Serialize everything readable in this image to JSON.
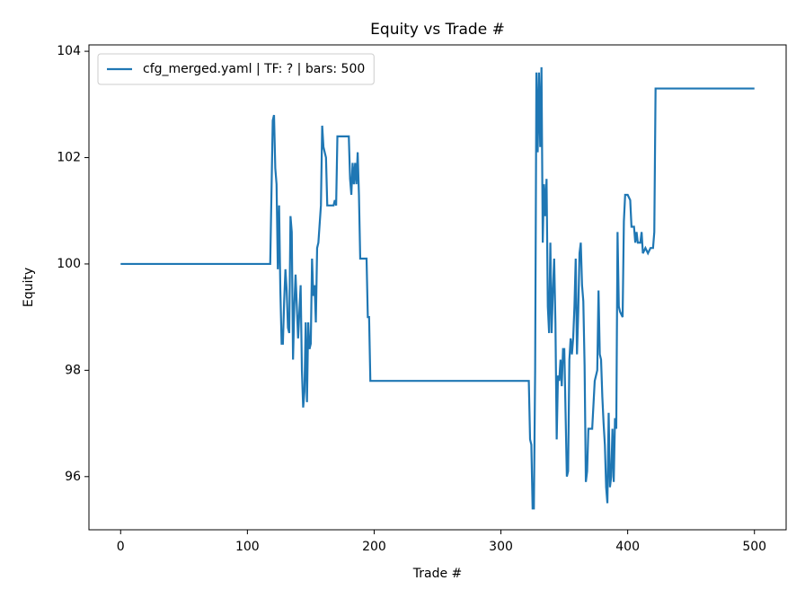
{
  "chart_data": {
    "type": "line",
    "title": "Equity vs Trade #",
    "x_label": "Trade #",
    "y_label": "Equity",
    "xlim": [
      -25,
      525
    ],
    "ylim": [
      95.0,
      104.12
    ],
    "xticks": [
      0,
      100,
      200,
      300,
      400,
      500
    ],
    "yticks": [
      96,
      98,
      100,
      102,
      104
    ],
    "legend": "upper left",
    "x": [
      0,
      118,
      120,
      121,
      122,
      123,
      124,
      125,
      126,
      127,
      128,
      129,
      130,
      131,
      132,
      133,
      134,
      135,
      136,
      137,
      138,
      139,
      140,
      142,
      143,
      144,
      145,
      146,
      147,
      148,
      149,
      150,
      151,
      152,
      153,
      154,
      155,
      156,
      158,
      159,
      160,
      162,
      163,
      168,
      169,
      170,
      171,
      180,
      181,
      182,
      183,
      184,
      185,
      186,
      187,
      188,
      189,
      194,
      195,
      196,
      197,
      322,
      323,
      324,
      325,
      326,
      327,
      328,
      329,
      330,
      331,
      332,
      333,
      334,
      335,
      336,
      337,
      338,
      339,
      340,
      341,
      342,
      343,
      344,
      345,
      346,
      347,
      348,
      349,
      350,
      351,
      352,
      353,
      354,
      355,
      356,
      357,
      358,
      359,
      360,
      361,
      362,
      363,
      364,
      365,
      366,
      367,
      368,
      369,
      372,
      374,
      376,
      377,
      378,
      379,
      380,
      381,
      382,
      383,
      384,
      385,
      386,
      387,
      388,
      389,
      390,
      391,
      392,
      393,
      394,
      396,
      397,
      398,
      400,
      402,
      403,
      405,
      406,
      407,
      408,
      410,
      411,
      412,
      414,
      416,
      418,
      420,
      421,
      422,
      500
    ],
    "series": [
      {
        "name": "cfg_merged.yaml | TF: ? | bars: 500",
        "color": "#1f77b4",
        "values": [
          100,
          100,
          102.7,
          102.8,
          101.8,
          101.5,
          99.9,
          101.1,
          99.5,
          98.5,
          98.5,
          99.3,
          99.9,
          99.5,
          98.8,
          98.7,
          100.9,
          100.6,
          98.2,
          99.2,
          99.8,
          99.2,
          98.6,
          99.6,
          98.0,
          97.3,
          97.6,
          98.9,
          97.4,
          98.9,
          98.4,
          98.5,
          100.1,
          99.4,
          99.6,
          98.9,
          100.3,
          100.4,
          101.1,
          102.6,
          102.2,
          102.0,
          101.1,
          101.1,
          101.2,
          101.1,
          102.4,
          102.4,
          101.6,
          101.3,
          101.9,
          101.5,
          101.9,
          101.5,
          102.1,
          101.3,
          100.1,
          100.1,
          99.0,
          99.0,
          97.8,
          97.8,
          96.7,
          96.6,
          95.4,
          95.4,
          98.0,
          103.6,
          102.1,
          103.6,
          102.2,
          103.7,
          100.4,
          101.5,
          100.9,
          101.6,
          99.2,
          98.7,
          100.4,
          98.7,
          99.5,
          100.1,
          98.9,
          96.7,
          97.9,
          97.8,
          98.2,
          97.7,
          98.4,
          98.4,
          97.2,
          96.0,
          96.1,
          98.2,
          98.6,
          98.3,
          98.6,
          99.2,
          100.1,
          98.3,
          99.1,
          100.2,
          100.4,
          99.6,
          99.3,
          98.1,
          95.9,
          96.1,
          96.9,
          96.9,
          97.8,
          98.0,
          99.5,
          98.3,
          98.2,
          97.5,
          97.0,
          96.6,
          95.8,
          95.5,
          97.2,
          95.8,
          96.0,
          96.9,
          95.9,
          97.1,
          96.9,
          100.6,
          99.2,
          99.1,
          99.0,
          100.8,
          101.3,
          101.3,
          101.2,
          100.7,
          100.7,
          100.4,
          100.6,
          100.4,
          100.4,
          100.6,
          100.2,
          100.3,
          100.2,
          100.3,
          100.3,
          100.6,
          103.3,
          103.3
        ]
      }
    ]
  }
}
